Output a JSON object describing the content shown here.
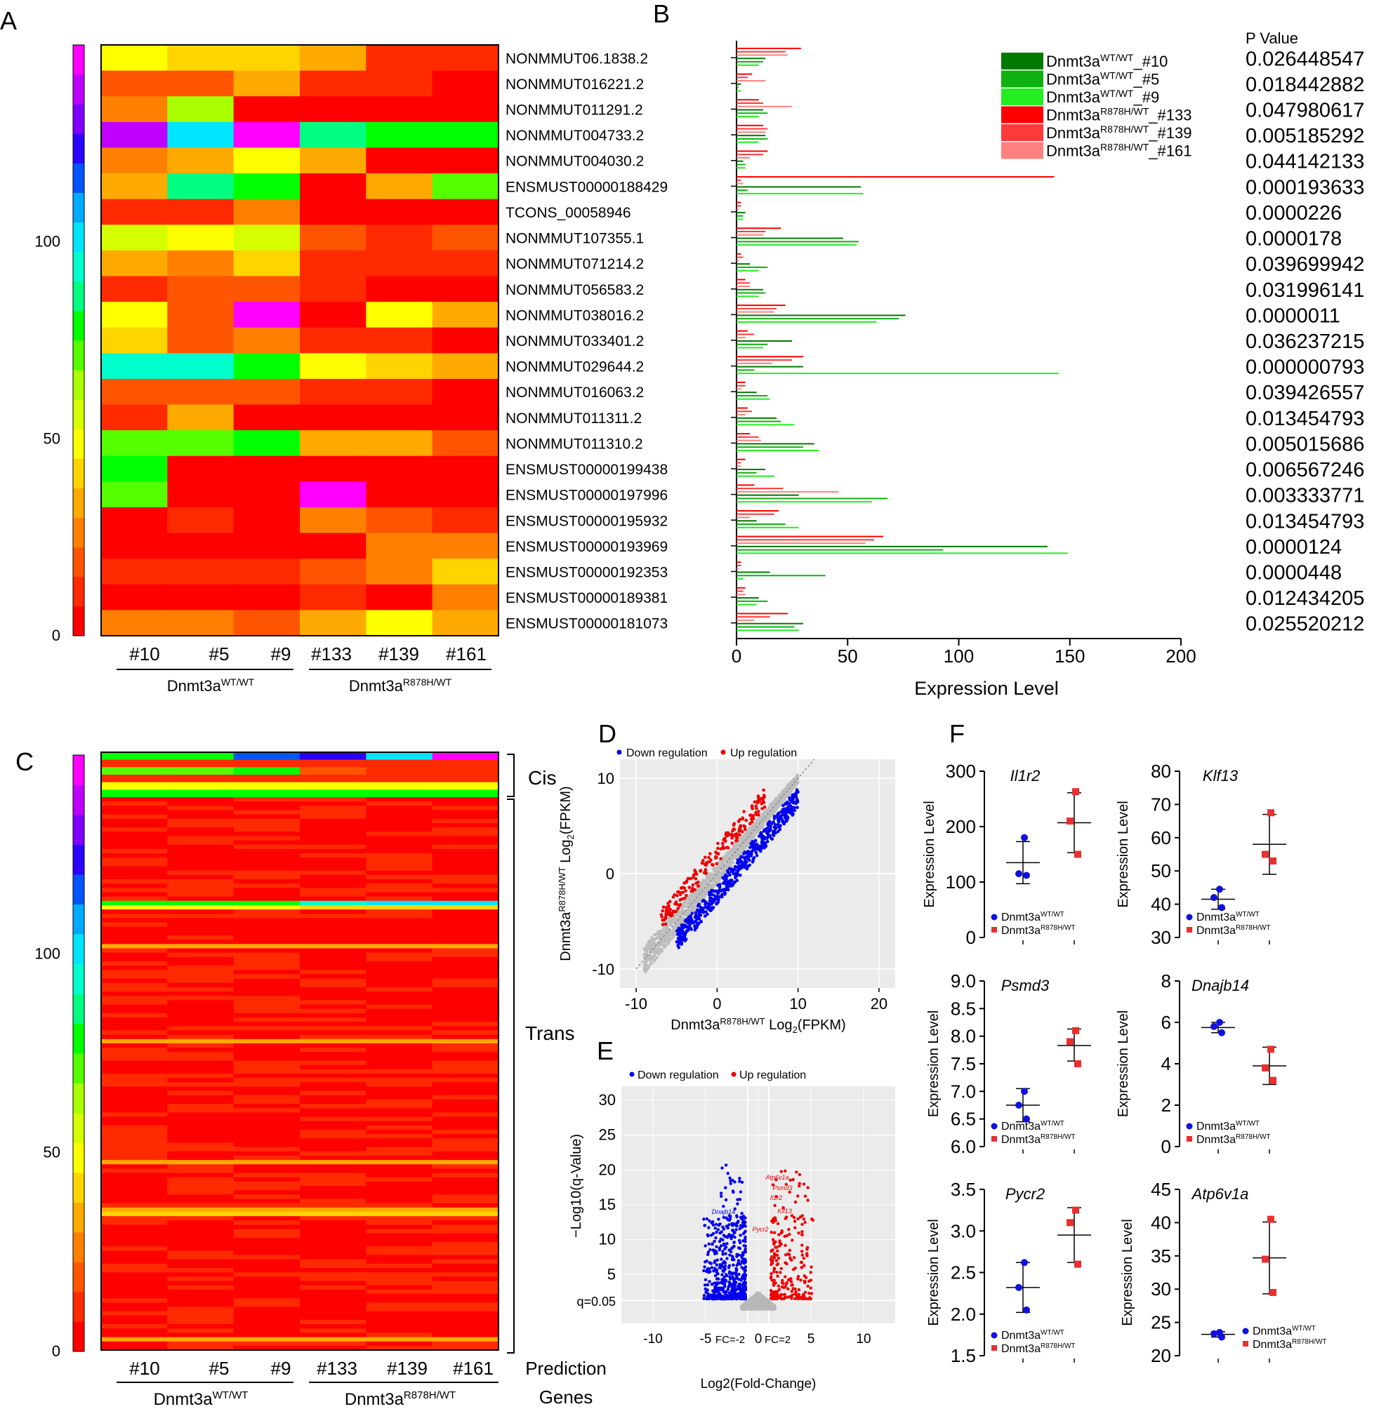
{
  "panels": {
    "A": "A",
    "B": "B",
    "C": "C",
    "D": "D",
    "E": "E",
    "F": "F"
  },
  "heatmap_palette": [
    "#ff0000",
    "#ff2a00",
    "#ff5500",
    "#ff8000",
    "#ffaa00",
    "#ffd500",
    "#ffff00",
    "#d5ff00",
    "#aaff00",
    "#55ff00",
    "#00ff00",
    "#00ff80",
    "#00ffcc",
    "#00e5ff",
    "#00aaff",
    "#0055ff",
    "#2a00ff",
    "#8000ff",
    "#c000ff",
    "#ff00ff"
  ],
  "chart_data": [
    {
      "panel": "A",
      "type": "heatmap",
      "colorbar_ticks": [
        "0",
        "50",
        "100"
      ],
      "columns": [
        "#10",
        "#5",
        "#9",
        "#133",
        "#139",
        "#161"
      ],
      "groups": [
        {
          "name": "Dnmt3a",
          "sup": "WT/WT"
        },
        {
          "name": "Dnmt3a",
          "sup": "R878H/WT"
        }
      ],
      "rows": [
        "NONMMUT06.1838.2",
        "NONMMUT016221.2",
        "NONMMUT011291.2",
        "NONMMUT004733.2",
        "NONMMUT004030.2",
        "ENSMUST00000188429",
        "TCONS_00058946",
        "NONMMUT107355.1",
        "NONMMUT071214.2",
        "NONMMUT056583.2",
        "NONMMUT038016.2",
        "NONMMUT033401.2",
        "NONMMUT029644.2",
        "NONMMUT016063.2",
        "NONMMUT011311.2",
        "NONMMUT011310.2",
        "ENSMUST00000199438",
        "ENSMUST00000197996",
        "ENSMUST00000195932",
        "ENSMUST00000193969",
        "ENSMUST00000192353",
        "ENSMUST00000189381",
        "ENSMUST00000181073"
      ],
      "cells": [
        [
          6,
          5,
          5,
          4,
          1,
          1
        ],
        [
          2,
          2,
          4,
          1,
          1,
          0
        ],
        [
          3,
          8,
          0,
          0,
          0,
          0
        ],
        [
          18,
          13,
          19,
          11,
          10,
          10
        ],
        [
          3,
          4,
          6,
          4,
          0,
          0
        ],
        [
          4,
          11,
          10,
          0,
          4,
          9
        ],
        [
          1,
          1,
          3,
          0,
          0,
          0
        ],
        [
          7,
          6,
          7,
          2,
          1,
          2
        ],
        [
          4,
          3,
          5,
          1,
          1,
          1
        ],
        [
          1,
          2,
          2,
          1,
          0,
          0
        ],
        [
          6,
          2,
          19,
          0,
          6,
          4
        ],
        [
          5,
          2,
          3,
          1,
          1,
          0
        ],
        [
          12,
          12,
          10,
          6,
          5,
          4
        ],
        [
          2,
          2,
          2,
          1,
          1,
          0
        ],
        [
          1,
          4,
          0,
          0,
          0,
          0
        ],
        [
          9,
          9,
          10,
          4,
          4,
          2
        ],
        [
          10,
          0,
          0,
          0,
          0,
          0
        ],
        [
          9,
          0,
          0,
          19,
          0,
          0
        ],
        [
          0,
          1,
          0,
          3,
          2,
          1
        ],
        [
          0,
          0,
          0,
          0,
          3,
          3
        ],
        [
          1,
          1,
          1,
          2,
          3,
          5
        ],
        [
          0,
          0,
          0,
          1,
          0,
          3
        ],
        [
          3,
          3,
          2,
          4,
          6,
          4
        ]
      ]
    },
    {
      "panel": "B",
      "type": "bar",
      "orientation": "horizontal",
      "xlabel": "Expression Level",
      "xlim": [
        0,
        200
      ],
      "xticks": [
        "0",
        "50",
        "100",
        "150",
        "200"
      ],
      "pvalue_header": "P Value",
      "pvalues": [
        "0.026448547",
        "0.018442882",
        "0.047980617",
        "0.005185292",
        "0.044142133",
        "0.000193633",
        "0.0000226",
        "0.0000178",
        "0.039699942",
        "0.031996141",
        "0.0000011",
        "0.036237215",
        "0.000000793",
        "0.039426557",
        "0.013454793",
        "0.005015686",
        "0.006567246",
        "0.003333771",
        "0.013454793",
        "0.0000124",
        "0.0000448",
        "0.012434205",
        "0.025520212"
      ],
      "series": [
        {
          "name": "Dnmt3a",
          "sup": "WT/WT",
          "suffix": "_#10",
          "color": "#007a00",
          "values": [
            13,
            2,
            12,
            13,
            3,
            56,
            4,
            48,
            6,
            12,
            76,
            25,
            30,
            9,
            18,
            35,
            13,
            28,
            9,
            140,
            15,
            10,
            30
          ]
        },
        {
          "name": "Dnmt3a",
          "sup": "WT/WT",
          "suffix": "_#5",
          "color": "#10b010",
          "values": [
            12,
            1,
            14,
            14,
            4,
            5,
            3,
            55,
            14,
            13,
            73,
            14,
            8,
            14,
            20,
            30,
            9,
            68,
            22,
            93,
            40,
            14,
            26
          ]
        },
        {
          "name": "Dnmt3a",
          "sup": "WT/WT",
          "suffix": "_#9",
          "color": "#22ee22",
          "values": [
            10,
            2,
            10,
            10,
            4,
            57,
            3,
            54,
            10,
            10,
            63,
            12,
            145,
            15,
            26,
            37,
            17,
            61,
            28,
            149,
            3,
            9,
            28
          ]
        },
        {
          "name": "Dnmt3a",
          "sup": "R878H/WT",
          "suffix": "_#133",
          "color": "#ff0000",
          "values": [
            29,
            7,
            10,
            12,
            14,
            143,
            2,
            20,
            2,
            4,
            22,
            5,
            30,
            4,
            5,
            6,
            4,
            8,
            19,
            66,
            2,
            4,
            23
          ]
        },
        {
          "name": "Dnmt3a",
          "sup": "R878H/WT",
          "suffix": "_#139",
          "color": "#ff3a3a",
          "values": [
            22,
            5,
            12,
            14,
            12,
            2,
            2,
            13,
            3,
            6,
            18,
            8,
            25,
            4,
            7,
            10,
            2,
            21,
            17,
            62,
            2,
            3,
            15
          ]
        },
        {
          "name": "Dnmt3a",
          "sup": "R878H/WT",
          "suffix": "_#161",
          "color": "#ff8080",
          "values": [
            23,
            13,
            25,
            13,
            6,
            3,
            1,
            12,
            1,
            6,
            17,
            4,
            16,
            2,
            4,
            11,
            2,
            46,
            6,
            58,
            1,
            4,
            8
          ]
        }
      ]
    },
    {
      "panel": "C",
      "type": "heatmap",
      "colorbar_ticks": [
        "0",
        "50",
        "100"
      ],
      "columns": [
        "#10",
        "#5",
        "#9",
        "#133",
        "#139",
        "#161"
      ],
      "groups": [
        {
          "name": "Dnmt3a",
          "sup": "WT/WT"
        },
        {
          "name": "Dnmt3a",
          "sup": "R878H/WT"
        }
      ],
      "bracket_labels": [
        "Cis",
        "Trans"
      ],
      "footer_labels": [
        "Prediction",
        "Genes"
      ],
      "cis_rows": [
        [
          10,
          10,
          15,
          16,
          13,
          19
        ],
        [
          1,
          1,
          1,
          1,
          1,
          1
        ],
        [
          9,
          9,
          10,
          2,
          1,
          1
        ],
        [
          1,
          1,
          1,
          1,
          1,
          1
        ],
        [
          6,
          6,
          6,
          6,
          6,
          6
        ],
        [
          10,
          10,
          10,
          10,
          10,
          10
        ]
      ],
      "trans_row_count": 128,
      "trans_special_rows": [
        {
          "index": 24,
          "values": [
            10,
            10,
            10,
            12,
            13,
            13
          ]
        },
        {
          "index": 25,
          "values": [
            6,
            6,
            6,
            5,
            5,
            5
          ]
        },
        {
          "index": 34,
          "values": [
            4,
            4,
            4,
            4,
            4,
            4
          ]
        },
        {
          "index": 56,
          "values": [
            4,
            4,
            4,
            4,
            4,
            4
          ]
        },
        {
          "index": 84,
          "values": [
            4,
            4,
            4,
            4,
            4,
            4
          ]
        },
        {
          "index": 95,
          "values": [
            4,
            4,
            4,
            4,
            4,
            4
          ]
        },
        {
          "index": 96,
          "values": [
            5,
            5,
            5,
            5,
            5,
            5
          ]
        },
        {
          "index": 125,
          "values": [
            4,
            4,
            4,
            4,
            4,
            4
          ]
        }
      ]
    },
    {
      "panel": "D",
      "type": "scatter",
      "xlabel": "Dnmt3a",
      "xlabel_sup": "R878H/WT",
      "xlabel_tail": " Log",
      "xlabel_sub": "2",
      "xlabel_end": "(FPKM)",
      "ylabel": "Dnmt3a",
      "ylabel_sup": "R878H/WT",
      "ylabel_tail": " Log",
      "ylabel_sub": "2",
      "ylabel_end": "(FPKM)",
      "xlim": [
        -12,
        22
      ],
      "ylim": [
        -12,
        12
      ],
      "xticks": [
        "-10",
        "0",
        "10",
        "20"
      ],
      "yticks": [
        "-10",
        "0",
        "10"
      ],
      "legend": [
        {
          "label": "Down regulation",
          "color": "#0000ee"
        },
        {
          "label": "Up regulation",
          "color": "#ee0000"
        }
      ]
    },
    {
      "panel": "E",
      "type": "scatter",
      "xlabel": "Log2(Fold-Change)",
      "ylabel": "−Log10(q-Value)",
      "xlim": [
        -13,
        13
      ],
      "ylim": [
        -2,
        32
      ],
      "xticks": [
        "-10",
        "-5",
        "0",
        "5",
        "10"
      ],
      "yticks": [
        "5",
        "10",
        "15",
        "20",
        "25",
        "30"
      ],
      "threshold_label": "q=0.05",
      "fc_labels": [
        "FC=-2",
        "FC=2"
      ],
      "legend": [
        {
          "label": "Down regulation",
          "color": "#0000ee"
        },
        {
          "label": "Up regulation",
          "color": "#ee0000"
        }
      ],
      "gene_labels": [
        {
          "name": "Atp6v1a",
          "x": 1.8,
          "y": 18.6,
          "group": "up"
        },
        {
          "name": "Psmd3",
          "x": 2.3,
          "y": 17.1,
          "group": "up"
        },
        {
          "name": "Il1r2",
          "x": 1.7,
          "y": 15.7,
          "group": "up"
        },
        {
          "name": "Klf13",
          "x": 2.5,
          "y": 13.8,
          "group": "up"
        },
        {
          "name": "Pycr2",
          "x": 0.2,
          "y": 11.2,
          "group": "up"
        },
        {
          "name": "Dnajb14",
          "x": -3.3,
          "y": 13.7,
          "group": "down"
        }
      ]
    },
    {
      "panel": "F",
      "type": "scatter",
      "ylabel": "Expression Level",
      "legend": [
        {
          "name": "Dnmt3a",
          "sup": "WT/WT",
          "color": "#1010e0",
          "shape": "circle"
        },
        {
          "name": "Dnmt3a",
          "sup": "R878H/WT",
          "color": "#e83030",
          "shape": "square"
        }
      ],
      "plots": [
        {
          "gene": "Il1r2",
          "yticks": [
            0,
            100,
            200,
            300
          ],
          "ylim": [
            0,
            300
          ],
          "wt": [
            180,
            115,
            112
          ],
          "mut": [
            263,
            210,
            150
          ],
          "wt_mean": 135,
          "wt_err": [
            97,
            173
          ],
          "mut_mean": 207,
          "mut_err": [
            153,
            261
          ]
        },
        {
          "gene": "Klf13",
          "yticks": [
            30,
            40,
            50,
            60,
            70,
            80
          ],
          "ylim": [
            30,
            80
          ],
          "wt": [
            44.5,
            42,
            39
          ],
          "mut": [
            67.5,
            55,
            53
          ],
          "wt_mean": 41.5,
          "wt_err": [
            38.5,
            44.5
          ],
          "mut_mean": 58,
          "mut_err": [
            49,
            67
          ]
        },
        {
          "gene": "Psmd3",
          "yticks": [
            "6.0",
            "6.5",
            "7.0",
            "7.5",
            "8.0",
            "8.5",
            "9.0"
          ],
          "ylim": [
            6.0,
            9.0
          ],
          "wt": [
            7.0,
            6.75,
            6.5
          ],
          "mut": [
            8.1,
            7.9,
            7.5
          ],
          "wt_mean": 6.75,
          "wt_err": [
            6.45,
            7.05
          ],
          "mut_mean": 7.83,
          "mut_err": [
            7.55,
            8.13
          ]
        },
        {
          "gene": "Dnajb14",
          "yticks": [
            0,
            2,
            4,
            6,
            8
          ],
          "ylim": [
            0,
            8
          ],
          "wt": [
            6.0,
            5.8,
            5.5
          ],
          "mut": [
            4.7,
            3.8,
            3.2
          ],
          "wt_mean": 5.75,
          "wt_err": [
            5.5,
            6.0
          ],
          "mut_mean": 3.9,
          "mut_err": [
            3.0,
            4.8
          ]
        },
        {
          "gene": "Pycr2",
          "yticks": [
            "1.5",
            "2.0",
            "2.5",
            "3.0",
            "3.5"
          ],
          "ylim": [
            1.5,
            3.5
          ],
          "wt": [
            2.62,
            2.32,
            2.05
          ],
          "mut": [
            3.25,
            3.1,
            2.6
          ],
          "wt_mean": 2.32,
          "wt_err": [
            2.02,
            2.62
          ],
          "mut_mean": 2.95,
          "mut_err": [
            2.62,
            3.28
          ]
        },
        {
          "gene": "Atp6v1a",
          "yticks": [
            20,
            25,
            30,
            35,
            40,
            45
          ],
          "ylim": [
            20,
            45
          ],
          "wt": [
            23.5,
            23.3,
            22.8
          ],
          "mut": [
            40.5,
            34.5,
            29.5
          ],
          "wt_mean": 23.2,
          "wt_err": [
            22.8,
            23.6
          ],
          "mut_mean": 34.7,
          "mut_err": [
            29.3,
            40.1
          ]
        }
      ]
    }
  ]
}
